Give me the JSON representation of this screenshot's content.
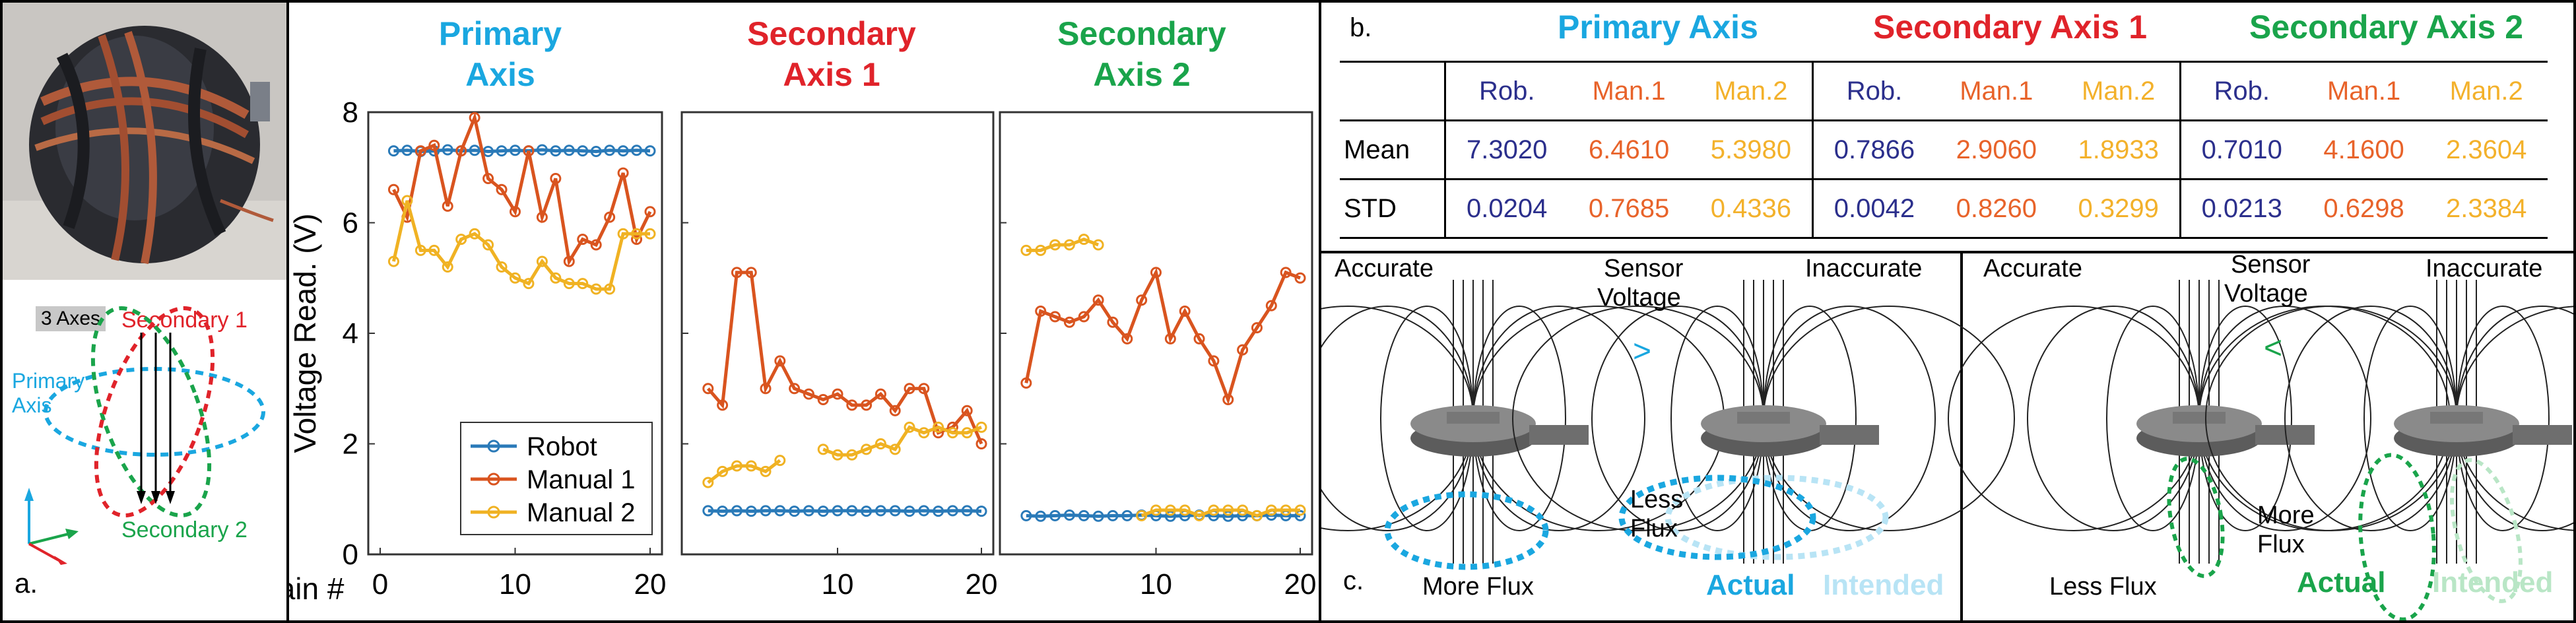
{
  "figure": {
    "panel_labels": {
      "a": "a.",
      "b": "b.",
      "c": "c."
    },
    "photo": {
      "axes_badge": "3 Axes",
      "secondary1_label": "Secondary 1",
      "primary_label_line1": "Primary",
      "primary_label_line2": "Axis",
      "secondary2_label": "Secondary 2"
    },
    "plot": {
      "col_titles": [
        {
          "line1": "Primary",
          "line2": "Axis"
        },
        {
          "line1": "Secondary",
          "line2": "Axis 1"
        },
        {
          "line1": "Secondary",
          "line2": "Axis 2"
        }
      ],
      "xlabel": "Train #",
      "legend": [
        "Robot",
        "Manual 1",
        "Manual 2"
      ]
    },
    "table": {
      "group_headers": [
        "Primary Axis",
        "Secondary Axis 1",
        "Secondary Axis 2"
      ],
      "sub_headers": [
        "Rob.",
        "Man.1",
        "Man.2"
      ],
      "rows": [
        {
          "label": "Mean",
          "values": [
            "7.3020",
            "6.4610",
            "5.3980",
            "0.7866",
            "2.9060",
            "1.8933",
            "0.7010",
            "4.1600",
            "2.3604"
          ]
        },
        {
          "label": "STD",
          "values": [
            "0.0204",
            "0.7685",
            "0.4336",
            "0.0042",
            "0.8260",
            "0.3299",
            "0.0213",
            "0.6298",
            "2.3384"
          ]
        }
      ]
    },
    "flux": {
      "accurate": "Accurate",
      "inaccurate": "Inaccurate",
      "sensor_line1": "Sensor",
      "sensor_line2": "Voltage",
      "gt": ">",
      "lt": "<",
      "more_flux": "More Flux",
      "less_flux_line1": "Less",
      "less_flux_line2": "Flux",
      "less_flux": "Less Flux",
      "more_line1": "More",
      "more_line2": "Flux",
      "actual": "Actual",
      "intended": "Intended"
    }
  },
  "colors": {
    "robot": "#2a7ab8",
    "manual1": "#d9541f",
    "manual2": "#f0b223",
    "blue_title": "#1aa7e0",
    "red_title": "#e0232a",
    "green_title": "#1aa44b"
  },
  "chart_data": {
    "type": "line",
    "ylabel": "Voltage Read. (V)",
    "xlabel": "Train #",
    "ylim": [
      0,
      8
    ],
    "yticks": [
      0,
      2,
      4,
      6,
      8
    ],
    "xlim": [
      0,
      20
    ],
    "xticks": [
      0,
      10,
      20
    ],
    "legend_position": "bottom-right of first panel",
    "panels": [
      {
        "title": "Primary Axis",
        "series": [
          {
            "name": "Robot",
            "x": [
              1,
              2,
              3,
              4,
              5,
              6,
              7,
              8,
              9,
              10,
              11,
              12,
              13,
              14,
              15,
              16,
              17,
              18,
              19,
              20
            ],
            "values": [
              7.3,
              7.31,
              7.29,
              7.3,
              7.32,
              7.3,
              7.31,
              7.29,
              7.3,
              7.31,
              7.3,
              7.32,
              7.3,
              7.31,
              7.3,
              7.29,
              7.31,
              7.3,
              7.31,
              7.3
            ]
          },
          {
            "name": "Manual 1",
            "x": [
              1,
              2,
              3,
              4,
              5,
              6,
              7,
              8,
              9,
              10,
              11,
              12,
              13,
              14,
              15,
              16,
              17,
              18,
              19,
              20
            ],
            "values": [
              6.6,
              6.1,
              7.3,
              7.4,
              6.3,
              7.3,
              7.9,
              6.8,
              6.6,
              6.2,
              7.3,
              6.1,
              6.8,
              5.3,
              5.7,
              5.6,
              6.1,
              6.9,
              5.7,
              6.2
            ]
          },
          {
            "name": "Manual 2",
            "x": [
              1,
              2,
              3,
              4,
              5,
              6,
              7,
              8,
              9,
              10,
              11,
              12,
              13,
              14,
              15,
              16,
              17,
              18,
              19,
              20
            ],
            "values": [
              5.3,
              6.4,
              5.5,
              5.5,
              5.2,
              5.7,
              5.8,
              5.6,
              5.2,
              5.0,
              4.9,
              5.3,
              5.0,
              4.9,
              4.9,
              4.8,
              4.8,
              5.8,
              5.8,
              5.8
            ]
          }
        ]
      },
      {
        "title": "Secondary Axis 1",
        "series": [
          {
            "name": "Robot",
            "x": [
              1,
              2,
              3,
              4,
              5,
              6,
              7,
              8,
              9,
              10,
              11,
              12,
              13,
              14,
              15,
              16,
              17,
              18,
              19,
              20
            ],
            "values": [
              0.79,
              0.78,
              0.79,
              0.78,
              0.79,
              0.79,
              0.78,
              0.79,
              0.78,
              0.79,
              0.79,
              0.78,
              0.79,
              0.79,
              0.78,
              0.79,
              0.78,
              0.79,
              0.79,
              0.78
            ]
          },
          {
            "name": "Manual 1",
            "x": [
              1,
              2,
              3,
              4,
              5,
              6,
              7,
              8,
              9,
              10,
              11,
              12,
              13,
              14,
              15,
              16,
              17,
              18,
              19,
              20
            ],
            "values": [
              3.0,
              2.7,
              5.1,
              5.1,
              3.0,
              3.5,
              3.0,
              2.9,
              2.8,
              2.9,
              2.7,
              2.7,
              2.9,
              2.6,
              3.0,
              3.0,
              2.2,
              2.3,
              2.6,
              2.0
            ]
          },
          {
            "name": "Manual 2",
            "x": [
              1,
              2,
              3,
              4,
              5,
              6,
              9,
              10,
              11,
              12,
              13,
              14,
              15,
              16,
              17,
              18,
              19,
              20
            ],
            "values": [
              1.3,
              1.5,
              1.6,
              1.6,
              1.5,
              1.7,
              1.9,
              1.8,
              1.8,
              1.9,
              2.0,
              1.9,
              2.3,
              2.2,
              2.3,
              2.2,
              2.2,
              2.3
            ]
          }
        ]
      },
      {
        "title": "Secondary Axis 2",
        "series": [
          {
            "name": "Robot",
            "x": [
              1,
              2,
              3,
              4,
              5,
              6,
              7,
              8,
              9,
              10,
              11,
              12,
              13,
              14,
              15,
              16,
              17,
              18,
              19,
              20
            ],
            "values": [
              0.7,
              0.69,
              0.7,
              0.71,
              0.7,
              0.69,
              0.7,
              0.7,
              0.71,
              0.7,
              0.69,
              0.7,
              0.71,
              0.7,
              0.69,
              0.7,
              0.7,
              0.71,
              0.7,
              0.7
            ]
          },
          {
            "name": "Manual 1",
            "x": [
              1,
              2,
              3,
              4,
              5,
              6,
              7,
              8,
              9,
              10,
              11,
              12,
              13,
              14,
              15,
              16,
              17,
              18,
              19,
              20
            ],
            "values": [
              3.1,
              4.4,
              4.3,
              4.2,
              4.3,
              4.6,
              4.2,
              3.9,
              4.6,
              5.1,
              3.9,
              4.4,
              3.9,
              3.5,
              2.8,
              3.7,
              4.1,
              4.5,
              5.1,
              5.0
            ]
          },
          {
            "name": "Manual 2",
            "x": [
              1,
              2,
              3,
              4,
              5,
              6,
              9,
              10,
              11,
              12,
              13,
              14,
              15,
              16,
              17,
              18,
              19,
              20
            ],
            "values": [
              5.5,
              5.5,
              5.6,
              5.6,
              5.7,
              5.6,
              0.7,
              0.8,
              0.8,
              0.8,
              0.7,
              0.8,
              0.8,
              0.8,
              0.7,
              0.8,
              0.8,
              0.8
            ]
          }
        ]
      }
    ]
  }
}
